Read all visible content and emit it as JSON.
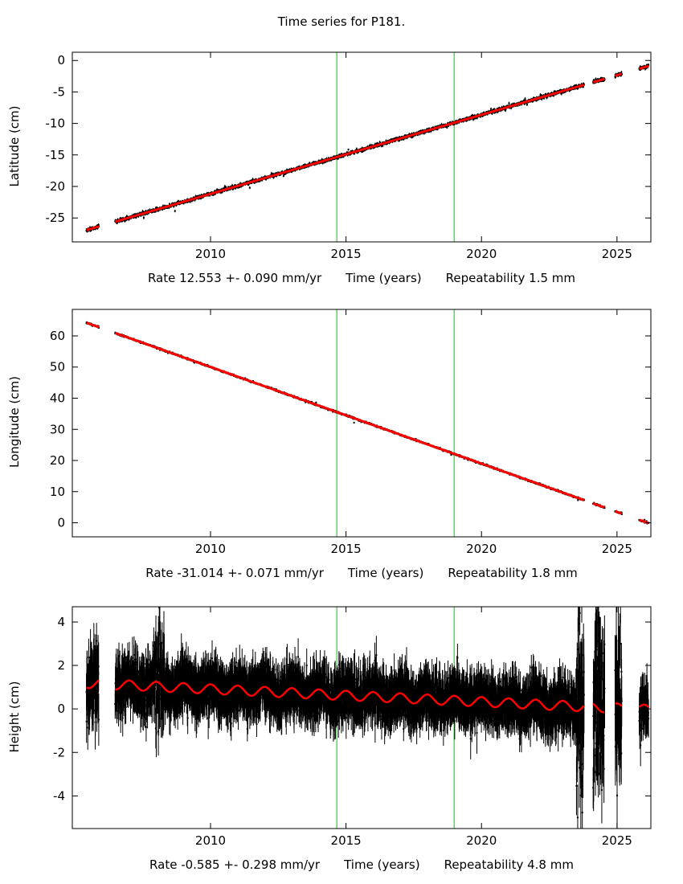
{
  "title": "Time series for P181.",
  "colors": {
    "background": "#ffffff",
    "data": "#000000",
    "fit": "#ff0000",
    "event_line": "#00cc00",
    "frame": "#000000"
  },
  "x_axis": {
    "label": "Time (years)",
    "ticks": [
      2010,
      2015,
      2020,
      2025
    ],
    "range": [
      2004.9,
      2026.25
    ]
  },
  "event_lines_x": [
    2014.66,
    2018.99
  ],
  "data_segments": [
    [
      2005.42,
      2005.88
    ],
    [
      2006.48,
      2023.79
    ],
    [
      2024.12,
      2024.55
    ],
    [
      2024.93,
      2025.18
    ],
    [
      2025.82,
      2026.17
    ]
  ],
  "chart_data": [
    {
      "type": "scatter",
      "name": "latitude",
      "ylabel": "Latitude (cm)",
      "ylim": [
        -28.8,
        1.3
      ],
      "yticks": [
        0,
        -5,
        -10,
        -15,
        -20,
        -25
      ],
      "trend": {
        "slope_cm_per_yr": 1.2553,
        "value_at_2015": -14.9
      },
      "noise": {
        "sd_cm": 0.12,
        "errbar_cm": 0.22
      },
      "caption": {
        "rate": "Rate 12.553 +- 0.090 mm/yr",
        "xlabel": "Time (years)",
        "repeatability": "Repeatability 1.5 mm"
      }
    },
    {
      "type": "scatter",
      "name": "longitude",
      "ylabel": "Longitude (cm)",
      "ylim": [
        -4.5,
        68.5
      ],
      "yticks": [
        0,
        10,
        20,
        30,
        40,
        50,
        60
      ],
      "trend": {
        "slope_cm_per_yr": -3.1014,
        "value_at_2015": 34.5
      },
      "noise": {
        "sd_cm": 0.13,
        "errbar_cm": 0.22
      },
      "caption": {
        "rate": "Rate -31.014 +- 0.071 mm/yr",
        "xlabel": "Time (years)",
        "repeatability": "Repeatability 1.8 mm"
      }
    },
    {
      "type": "scatter",
      "name": "height",
      "ylabel": "Height (cm)",
      "ylim": [
        -5.5,
        4.7
      ],
      "yticks": [
        -4,
        -2,
        0,
        2,
        4
      ],
      "trend": {
        "slope_cm_per_yr": -0.0585,
        "value_at_2015": 0.62,
        "seasonal_amp_cm": 0.22,
        "seasonal_phase_yr": 2014.75
      },
      "noise": {
        "sd_cm": 0.5,
        "errbar_cm": 0.75,
        "noisy_windows": [
          [
            2023.5,
            2024.6
          ],
          [
            2024.9,
            2025.2
          ]
        ],
        "noisy_sd_cm": 1.9
      },
      "caption": {
        "rate": "Rate -0.585 +- 0.298 mm/yr",
        "xlabel": "Time (years)",
        "repeatability": "Repeatability 4.8 mm"
      }
    }
  ]
}
